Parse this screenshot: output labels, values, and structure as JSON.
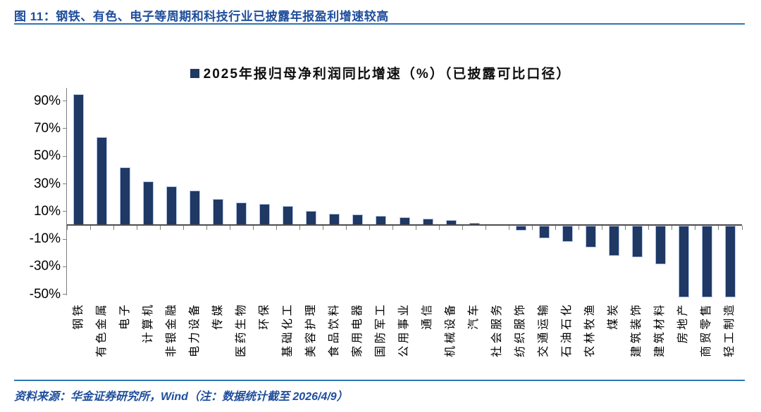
{
  "figure": {
    "title": "图 11：钢铁、有色、电子等周期和科技行业已披露年报盈利增速较高",
    "source_note": "资料来源：华金证券研究所，Wind（注：数据统计截至 2026/4/9）"
  },
  "colors": {
    "bar_fill": "#1F3864",
    "bar_border": "#B4C7E7",
    "title_text": "#1F4E9C",
    "rule_line": "#2E75B6",
    "zero_axis": "#4d4d4d",
    "axis_gray": "#7f7f7f"
  },
  "chart_data": {
    "type": "bar",
    "title": "2025年报归母净利润同比增速（%）（已披露可比口径）",
    "legend_position": "top-center",
    "grid": false,
    "categories": [
      "钢铁",
      "有色金属",
      "电子",
      "计算机",
      "非银金融",
      "电力设备",
      "传媒",
      "医药生物",
      "环保",
      "基础化工",
      "美容护理",
      "食品饮料",
      "家用电器",
      "国防军工",
      "公用事业",
      "通信",
      "机械设备",
      "汽车",
      "社会服务",
      "纺织服饰",
      "交通运输",
      "石油石化",
      "农林牧渔",
      "煤炭",
      "建筑装饰",
      "建筑材料",
      "房地产",
      "商贸零售",
      "轻工制造"
    ],
    "values": [
      95,
      64,
      42,
      32,
      28,
      25,
      19,
      16.5,
      15.5,
      14,
      10.5,
      8.5,
      8,
      7,
      6,
      5,
      4,
      2,
      0,
      -4,
      -9.5,
      -12,
      -16,
      -22,
      -23,
      -28,
      -52,
      -52,
      -52
    ],
    "unit": "%",
    "xlabel": "",
    "ylabel": "",
    "ylim": [
      -53,
      97
    ],
    "ytick_values": [
      90,
      70,
      50,
      30,
      10,
      -10,
      -30,
      -50
    ],
    "ytick_labels": [
      "90%",
      "70%",
      "50%",
      "30%",
      "10%",
      "-10%",
      "-30%",
      "-50%"
    ]
  }
}
